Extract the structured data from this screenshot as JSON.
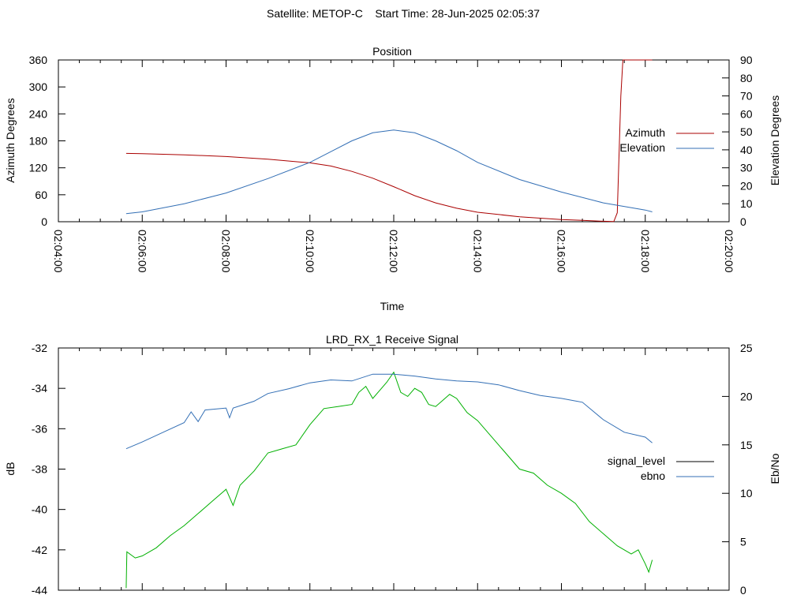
{
  "header": {
    "title": "Satellite: METOP-C    Start Time: 28-Jun-2025 02:05:37"
  },
  "colors": {
    "azimuth": "#aa0000",
    "elevation": "#336fb5",
    "signal_level": "#00b000",
    "signal_level_legend": "#000000",
    "ebno": "#336fb5"
  },
  "chart_data": [
    {
      "type": "line",
      "title": "Position",
      "xlabel": "Time",
      "ylabel": "Azimuth Degrees",
      "y2label": "Elevation Degrees",
      "xlim": [
        "02:04:00",
        "02:20:00"
      ],
      "ylim": [
        0,
        360
      ],
      "y2lim": [
        0,
        90
      ],
      "x_ticks": [
        "02:04:00",
        "02:06:00",
        "02:08:00",
        "02:10:00",
        "02:12:00",
        "02:14:00",
        "02:16:00",
        "02:18:00",
        "02:20:00"
      ],
      "y_ticks": [
        "0",
        "60",
        "120",
        "180",
        "240",
        "300",
        "360"
      ],
      "y2_ticks": [
        "0",
        "10",
        "20",
        "30",
        "40",
        "50",
        "60",
        "70",
        "80",
        "90"
      ],
      "grid": false,
      "legend": "right",
      "series": [
        {
          "name": "Azimuth",
          "axis": "y",
          "points": [
            [
              "02:05:37",
              152
            ],
            [
              "02:06:00",
              151.5
            ],
            [
              "02:07:00",
              149
            ],
            [
              "02:08:00",
              145
            ],
            [
              "02:09:00",
              139
            ],
            [
              "02:10:00",
              131
            ],
            [
              "02:10:30",
              124
            ],
            [
              "02:11:00",
              112
            ],
            [
              "02:11:30",
              97
            ],
            [
              "02:12:00",
              78
            ],
            [
              "02:12:30",
              58
            ],
            [
              "02:13:00",
              42
            ],
            [
              "02:13:30",
              30
            ],
            [
              "02:14:00",
              21
            ],
            [
              "02:15:00",
              11
            ],
            [
              "02:16:00",
              5
            ],
            [
              "02:16:30",
              3
            ],
            [
              "02:17:00",
              1
            ],
            [
              "02:17:15",
              0.3
            ],
            [
              "02:17:20",
              20
            ],
            [
              "02:17:25",
              280
            ],
            [
              "02:17:28",
              360
            ],
            [
              "02:18:10",
              360
            ]
          ]
        },
        {
          "name": "Elevation",
          "axis": "y2",
          "points": [
            [
              "02:05:37",
              4.5
            ],
            [
              "02:06:00",
              5.5
            ],
            [
              "02:07:00",
              10
            ],
            [
              "02:08:00",
              16
            ],
            [
              "02:09:00",
              24
            ],
            [
              "02:10:00",
              33
            ],
            [
              "02:10:30",
              39
            ],
            [
              "02:11:00",
              45
            ],
            [
              "02:11:30",
              49.5
            ],
            [
              "02:12:00",
              51
            ],
            [
              "02:12:30",
              49.5
            ],
            [
              "02:13:00",
              45
            ],
            [
              "02:13:30",
              39.5
            ],
            [
              "02:14:00",
              33
            ],
            [
              "02:15:00",
              23.5
            ],
            [
              "02:16:00",
              16.5
            ],
            [
              "02:17:00",
              10.5
            ],
            [
              "02:18:00",
              6.5
            ],
            [
              "02:18:10",
              5.5
            ]
          ]
        }
      ]
    },
    {
      "type": "line",
      "title": "LRD_RX_1 Receive Signal",
      "xlabel": "",
      "ylabel": "dB",
      "y2label": "Eb/No",
      "xlim": [
        "02:04:00",
        "02:20:00"
      ],
      "ylim": [
        -44,
        -32
      ],
      "y2lim": [
        0,
        25
      ],
      "y_ticks": [
        "-44",
        "-42",
        "-40",
        "-38",
        "-36",
        "-34",
        "-32"
      ],
      "y2_ticks": [
        "0",
        "5",
        "10",
        "15",
        "20",
        "25"
      ],
      "grid": false,
      "legend": "right",
      "series": [
        {
          "name": "signal_level",
          "axis": "y",
          "points": [
            [
              "02:05:37",
              -43.9
            ],
            [
              "02:05:38",
              -42.1
            ],
            [
              "02:05:50",
              -42.4
            ],
            [
              "02:06:00",
              -42.3
            ],
            [
              "02:06:20",
              -41.9
            ],
            [
              "02:06:40",
              -41.3
            ],
            [
              "02:07:00",
              -40.8
            ],
            [
              "02:07:20",
              -40.2
            ],
            [
              "02:07:40",
              -39.6
            ],
            [
              "02:08:00",
              -39.0
            ],
            [
              "02:08:10",
              -39.8
            ],
            [
              "02:08:20",
              -38.8
            ],
            [
              "02:08:40",
              -38.1
            ],
            [
              "02:09:00",
              -37.2
            ],
            [
              "02:09:20",
              -37.0
            ],
            [
              "02:09:40",
              -36.8
            ],
            [
              "02:10:00",
              -35.8
            ],
            [
              "02:10:20",
              -35.0
            ],
            [
              "02:10:40",
              -34.9
            ],
            [
              "02:11:00",
              -34.8
            ],
            [
              "02:11:10",
              -34.2
            ],
            [
              "02:11:20",
              -33.9
            ],
            [
              "02:11:30",
              -34.5
            ],
            [
              "02:11:40",
              -34.1
            ],
            [
              "02:11:50",
              -33.7
            ],
            [
              "02:12:00",
              -33.2
            ],
            [
              "02:12:10",
              -34.2
            ],
            [
              "02:12:20",
              -34.4
            ],
            [
              "02:12:30",
              -34.0
            ],
            [
              "02:12:40",
              -34.2
            ],
            [
              "02:12:50",
              -34.8
            ],
            [
              "02:13:00",
              -34.9
            ],
            [
              "02:13:10",
              -34.6
            ],
            [
              "02:13:20",
              -34.3
            ],
            [
              "02:13:30",
              -34.5
            ],
            [
              "02:13:45",
              -35.2
            ],
            [
              "02:14:00",
              -35.6
            ],
            [
              "02:14:20",
              -36.4
            ],
            [
              "02:14:40",
              -37.2
            ],
            [
              "02:15:00",
              -38.0
            ],
            [
              "02:15:20",
              -38.2
            ],
            [
              "02:15:40",
              -38.8
            ],
            [
              "02:16:00",
              -39.2
            ],
            [
              "02:16:20",
              -39.7
            ],
            [
              "02:16:40",
              -40.6
            ],
            [
              "02:17:00",
              -41.2
            ],
            [
              "02:17:20",
              -41.8
            ],
            [
              "02:17:40",
              -42.2
            ],
            [
              "02:17:50",
              -42.0
            ],
            [
              "02:18:00",
              -42.7
            ],
            [
              "02:18:05",
              -43.1
            ],
            [
              "02:18:10",
              -42.5
            ]
          ]
        },
        {
          "name": "ebno",
          "axis": "y2",
          "points": [
            [
              "02:05:37",
              14.6
            ],
            [
              "02:06:00",
              15.3
            ],
            [
              "02:06:30",
              16.3
            ],
            [
              "02:07:00",
              17.3
            ],
            [
              "02:07:10",
              18.4
            ],
            [
              "02:07:20",
              17.4
            ],
            [
              "02:07:30",
              18.6
            ],
            [
              "02:08:00",
              18.8
            ],
            [
              "02:08:05",
              17.8
            ],
            [
              "02:08:10",
              18.8
            ],
            [
              "02:08:40",
              19.5
            ],
            [
              "02:09:00",
              20.3
            ],
            [
              "02:09:30",
              20.8
            ],
            [
              "02:10:00",
              21.4
            ],
            [
              "02:10:30",
              21.7
            ],
            [
              "02:11:00",
              21.6
            ],
            [
              "02:11:30",
              22.3
            ],
            [
              "02:12:00",
              22.3
            ],
            [
              "02:12:30",
              22.1
            ],
            [
              "02:13:00",
              21.8
            ],
            [
              "02:13:30",
              21.6
            ],
            [
              "02:14:00",
              21.5
            ],
            [
              "02:14:30",
              21.2
            ],
            [
              "02:15:00",
              20.6
            ],
            [
              "02:15:30",
              20.1
            ],
            [
              "02:16:00",
              19.8
            ],
            [
              "02:16:30",
              19.4
            ],
            [
              "02:17:00",
              17.6
            ],
            [
              "02:17:30",
              16.3
            ],
            [
              "02:18:00",
              15.8
            ],
            [
              "02:18:10",
              15.2
            ]
          ]
        }
      ]
    }
  ]
}
